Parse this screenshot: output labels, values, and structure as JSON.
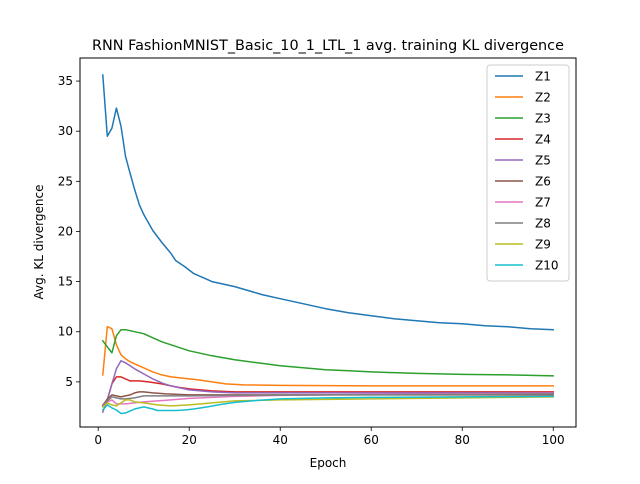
{
  "chart_data": {
    "type": "line",
    "title": "RNN FashionMNIST_Basic_10_1_LTL_1 avg. training KL divergence",
    "xlabel": "Epoch",
    "ylabel": "Avg. KL divergence",
    "xlim": [
      -4,
      105
    ],
    "ylim": [
      0.5,
      37.3
    ],
    "xticks": [
      0,
      20,
      40,
      60,
      80,
      100
    ],
    "yticks": [
      5,
      10,
      15,
      20,
      25,
      30,
      35
    ],
    "grid": false,
    "legend_position": "top-right",
    "series": [
      {
        "name": "Z1",
        "color": "#1f77b4",
        "points": [
          [
            1,
            35.6
          ],
          [
            2,
            29.5
          ],
          [
            3,
            30.3
          ],
          [
            4,
            32.3
          ],
          [
            5,
            30.5
          ],
          [
            6,
            27.5
          ],
          [
            7,
            25.8
          ],
          [
            8,
            24.2
          ],
          [
            9,
            22.7
          ],
          [
            10,
            21.7
          ],
          [
            12,
            20.1
          ],
          [
            14,
            18.9
          ],
          [
            16,
            17.8
          ],
          [
            17,
            17.1
          ],
          [
            19,
            16.5
          ],
          [
            21,
            15.8
          ],
          [
            23,
            15.4
          ],
          [
            25,
            15.0
          ],
          [
            28,
            14.7
          ],
          [
            30,
            14.5
          ],
          [
            33,
            14.1
          ],
          [
            36,
            13.7
          ],
          [
            40,
            13.3
          ],
          [
            45,
            12.8
          ],
          [
            50,
            12.3
          ],
          [
            55,
            11.9
          ],
          [
            60,
            11.6
          ],
          [
            65,
            11.3
          ],
          [
            70,
            11.1
          ],
          [
            75,
            10.9
          ],
          [
            80,
            10.8
          ],
          [
            85,
            10.6
          ],
          [
            90,
            10.5
          ],
          [
            95,
            10.3
          ],
          [
            100,
            10.2
          ]
        ]
      },
      {
        "name": "Z2",
        "color": "#ff7f0e",
        "points": [
          [
            1,
            5.7
          ],
          [
            2,
            10.5
          ],
          [
            3,
            10.3
          ],
          [
            4,
            8.7
          ],
          [
            5,
            7.7
          ],
          [
            6,
            7.3
          ],
          [
            7,
            7.0
          ],
          [
            8,
            6.8
          ],
          [
            10,
            6.4
          ],
          [
            12,
            6.0
          ],
          [
            14,
            5.7
          ],
          [
            16,
            5.5
          ],
          [
            18,
            5.4
          ],
          [
            20,
            5.3
          ],
          [
            22,
            5.2
          ],
          [
            25,
            5.0
          ],
          [
            28,
            4.8
          ],
          [
            32,
            4.7
          ],
          [
            40,
            4.65
          ],
          [
            60,
            4.6
          ],
          [
            80,
            4.6
          ],
          [
            100,
            4.6
          ]
        ]
      },
      {
        "name": "Z3",
        "color": "#2ca02c",
        "points": [
          [
            1,
            9.1
          ],
          [
            2,
            8.5
          ],
          [
            3,
            7.9
          ],
          [
            4,
            9.6
          ],
          [
            5,
            10.2
          ],
          [
            6,
            10.2
          ],
          [
            8,
            10.0
          ],
          [
            10,
            9.8
          ],
          [
            12,
            9.4
          ],
          [
            14,
            9.0
          ],
          [
            16,
            8.7
          ],
          [
            18,
            8.4
          ],
          [
            20,
            8.1
          ],
          [
            25,
            7.6
          ],
          [
            30,
            7.2
          ],
          [
            35,
            6.9
          ],
          [
            40,
            6.6
          ],
          [
            45,
            6.4
          ],
          [
            50,
            6.2
          ],
          [
            55,
            6.1
          ],
          [
            60,
            6.0
          ],
          [
            70,
            5.85
          ],
          [
            80,
            5.75
          ],
          [
            90,
            5.7
          ],
          [
            100,
            5.6
          ]
        ]
      },
      {
        "name": "Z4",
        "color": "#d62728",
        "points": [
          [
            1,
            2.7
          ],
          [
            2,
            3.2
          ],
          [
            3,
            4.8
          ],
          [
            4,
            5.5
          ],
          [
            5,
            5.5
          ],
          [
            6,
            5.3
          ],
          [
            7,
            5.1
          ],
          [
            9,
            5.1
          ],
          [
            11,
            5.0
          ],
          [
            14,
            4.8
          ],
          [
            17,
            4.5
          ],
          [
            20,
            4.3
          ],
          [
            25,
            4.1
          ],
          [
            30,
            4.0
          ],
          [
            40,
            4.0
          ],
          [
            60,
            4.0
          ],
          [
            80,
            4.0
          ],
          [
            100,
            4.0
          ]
        ]
      },
      {
        "name": "Z5",
        "color": "#9467bd",
        "points": [
          [
            1,
            2.0
          ],
          [
            2,
            3.2
          ],
          [
            3,
            4.8
          ],
          [
            4,
            6.3
          ],
          [
            5,
            7.1
          ],
          [
            6,
            6.9
          ],
          [
            7,
            6.6
          ],
          [
            8,
            6.3
          ],
          [
            10,
            5.8
          ],
          [
            12,
            5.3
          ],
          [
            14,
            4.9
          ],
          [
            16,
            4.6
          ],
          [
            18,
            4.4
          ],
          [
            20,
            4.2
          ],
          [
            25,
            4.0
          ],
          [
            30,
            3.9
          ],
          [
            40,
            3.9
          ],
          [
            60,
            3.9
          ],
          [
            80,
            3.9
          ],
          [
            100,
            3.9
          ]
        ]
      },
      {
        "name": "Z6",
        "color": "#8c564b",
        "points": [
          [
            1,
            2.6
          ],
          [
            2,
            3.3
          ],
          [
            3,
            3.7
          ],
          [
            4,
            3.6
          ],
          [
            5,
            3.5
          ],
          [
            6,
            3.6
          ],
          [
            7,
            3.7
          ],
          [
            8,
            3.9
          ],
          [
            9,
            4.0
          ],
          [
            10,
            4.0
          ],
          [
            12,
            3.9
          ],
          [
            15,
            3.8
          ],
          [
            20,
            3.7
          ],
          [
            30,
            3.7
          ],
          [
            50,
            3.7
          ],
          [
            80,
            3.7
          ],
          [
            100,
            3.7
          ]
        ]
      },
      {
        "name": "Z7",
        "color": "#e377c2",
        "points": [
          [
            1,
            2.7
          ],
          [
            2,
            3.0
          ],
          [
            3,
            3.2
          ],
          [
            4,
            2.8
          ],
          [
            6,
            2.8
          ],
          [
            8,
            2.9
          ],
          [
            10,
            3.0
          ],
          [
            13,
            3.1
          ],
          [
            16,
            3.2
          ],
          [
            20,
            3.35
          ],
          [
            25,
            3.45
          ],
          [
            30,
            3.55
          ],
          [
            40,
            3.65
          ],
          [
            60,
            3.75
          ],
          [
            80,
            3.8
          ],
          [
            100,
            3.85
          ]
        ]
      },
      {
        "name": "Z8",
        "color": "#7f7f7f",
        "points": [
          [
            1,
            2.6
          ],
          [
            2,
            3.1
          ],
          [
            3,
            3.5
          ],
          [
            4,
            3.4
          ],
          [
            5,
            3.3
          ],
          [
            6,
            3.3
          ],
          [
            8,
            3.4
          ],
          [
            10,
            3.6
          ],
          [
            15,
            3.6
          ],
          [
            20,
            3.6
          ],
          [
            30,
            3.65
          ],
          [
            50,
            3.7
          ],
          [
            80,
            3.75
          ],
          [
            100,
            3.8
          ]
        ]
      },
      {
        "name": "Z9",
        "color": "#bcbd22",
        "points": [
          [
            1,
            2.5
          ],
          [
            2,
            2.9
          ],
          [
            3,
            2.7
          ],
          [
            4,
            2.6
          ],
          [
            5,
            2.9
          ],
          [
            6,
            3.2
          ],
          [
            7,
            3.2
          ],
          [
            8,
            3.0
          ],
          [
            10,
            2.9
          ],
          [
            13,
            2.7
          ],
          [
            16,
            2.6
          ],
          [
            20,
            2.7
          ],
          [
            25,
            2.9
          ],
          [
            30,
            3.1
          ],
          [
            40,
            3.2
          ],
          [
            60,
            3.3
          ],
          [
            80,
            3.4
          ],
          [
            100,
            3.5
          ]
        ]
      },
      {
        "name": "Z10",
        "color": "#17becf",
        "points": [
          [
            1,
            2.2
          ],
          [
            2,
            2.7
          ],
          [
            3,
            2.4
          ],
          [
            4,
            2.2
          ],
          [
            5,
            1.85
          ],
          [
            6,
            1.9
          ],
          [
            7,
            2.1
          ],
          [
            8,
            2.3
          ],
          [
            10,
            2.5
          ],
          [
            12,
            2.3
          ],
          [
            13,
            2.15
          ],
          [
            15,
            2.15
          ],
          [
            17,
            2.15
          ],
          [
            19,
            2.2
          ],
          [
            21,
            2.3
          ],
          [
            24,
            2.5
          ],
          [
            27,
            2.75
          ],
          [
            30,
            2.95
          ],
          [
            35,
            3.15
          ],
          [
            40,
            3.3
          ],
          [
            50,
            3.4
          ],
          [
            60,
            3.45
          ],
          [
            80,
            3.5
          ],
          [
            100,
            3.55
          ]
        ]
      }
    ]
  }
}
